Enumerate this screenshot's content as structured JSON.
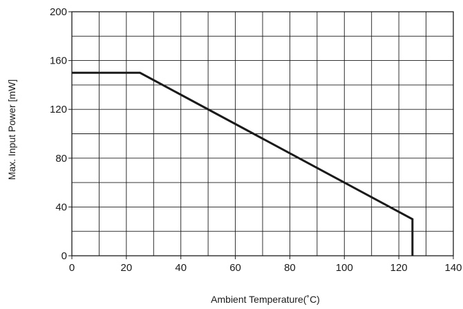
{
  "chart_data": {
    "type": "line",
    "title": "",
    "xlabel": "Ambient Temperature(˚C)",
    "ylabel": "Max. Input Power [mW]",
    "xlim": [
      0,
      140
    ],
    "ylim": [
      0,
      200
    ],
    "xticks": [
      0,
      20,
      40,
      60,
      80,
      100,
      120,
      140
    ],
    "yticks": [
      0,
      40,
      80,
      120,
      160,
      200
    ],
    "x_minor_step": 10,
    "y_minor_step": 20,
    "grid": true,
    "legend": "none",
    "line_color": "#1a1a1a",
    "grid_color": "#1a1a1a",
    "series": [
      {
        "x": [
          0,
          25,
          125,
          125
        ],
        "y": [
          150,
          150,
          30,
          0
        ]
      }
    ]
  }
}
